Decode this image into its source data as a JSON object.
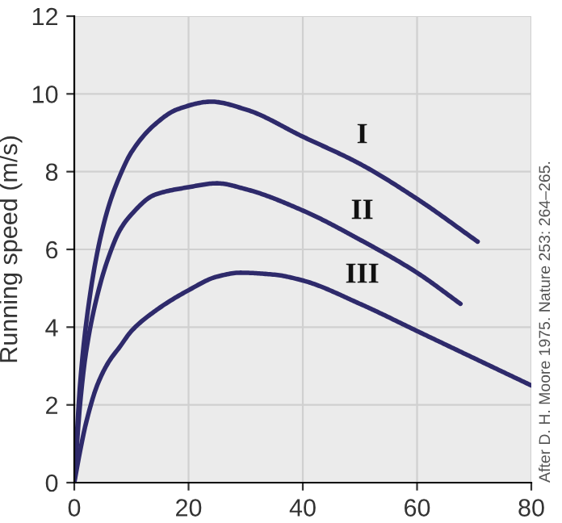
{
  "chart_data": {
    "type": "line",
    "ylabel": "Running speed (m/s)",
    "xlim": [
      0,
      80
    ],
    "ylim": [
      0,
      12
    ],
    "xticks": [
      0,
      20,
      40,
      60,
      80
    ],
    "yticks": [
      0,
      2,
      4,
      6,
      8,
      10,
      12
    ],
    "grid": true,
    "series": [
      {
        "name": "I",
        "color": "#2e2a6b",
        "x": [
          0,
          1,
          2,
          4,
          6,
          8,
          10,
          14,
          18,
          24,
          30,
          40,
          50,
          60,
          70.6
        ],
        "values": [
          0,
          2.5,
          4.0,
          5.9,
          7.1,
          7.9,
          8.5,
          9.2,
          9.6,
          9.8,
          9.6,
          8.9,
          8.2,
          7.3,
          6.2
        ]
      },
      {
        "name": "II",
        "color": "#2e2a6b",
        "x": [
          0,
          1,
          2,
          4,
          6,
          8,
          10,
          14,
          20,
          25,
          30,
          40,
          50,
          60,
          67.6
        ],
        "values": [
          0,
          2,
          3.3,
          4.8,
          5.8,
          6.5,
          6.9,
          7.4,
          7.6,
          7.7,
          7.55,
          7.0,
          6.25,
          5.4,
          4.6
        ]
      },
      {
        "name": "III",
        "color": "#2e2a6b",
        "x": [
          0,
          1,
          2,
          4,
          6,
          8,
          10,
          14,
          20,
          25,
          29,
          35,
          40,
          50,
          60,
          70,
          80
        ],
        "values": [
          0,
          0.8,
          1.5,
          2.5,
          3.1,
          3.5,
          3.9,
          4.4,
          4.95,
          5.3,
          5.4,
          5.35,
          5.2,
          4.6,
          3.9,
          3.2,
          2.5
        ]
      }
    ],
    "annotations": [
      "After D. H. Moore 1975. Nature 253: 264–265."
    ]
  }
}
